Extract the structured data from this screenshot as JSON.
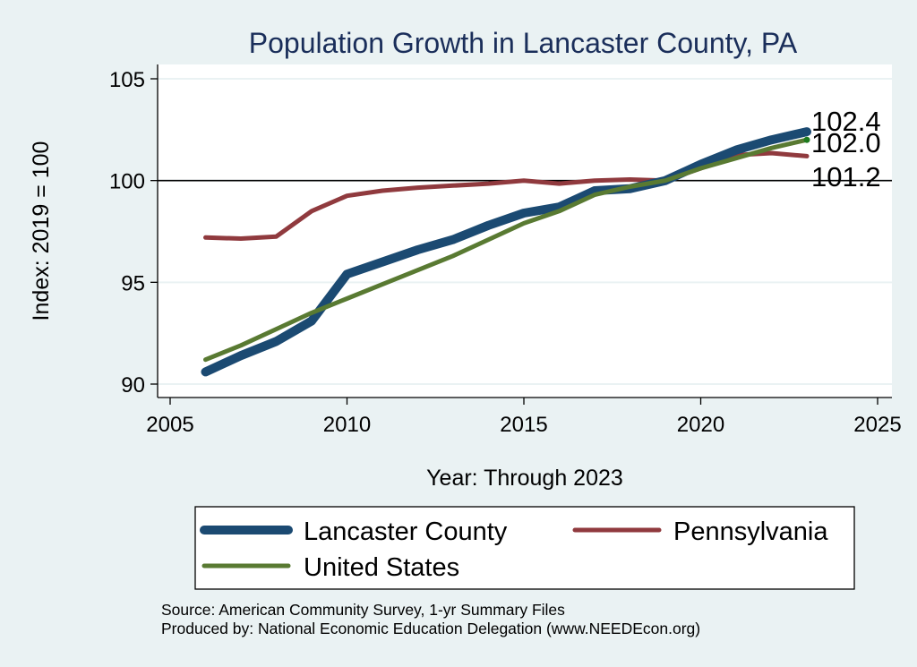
{
  "chart_data": {
    "type": "line",
    "title": "Population Growth in Lancaster County, PA",
    "xlabel": "Year: Through 2023",
    "ylabel": "Index: 2019 = 100",
    "xlim": [
      2005,
      2025
    ],
    "ylim": [
      89.5,
      105.7
    ],
    "x_ticks": [
      2005,
      2010,
      2015,
      2020,
      2025
    ],
    "y_ticks": [
      90,
      95,
      100,
      105
    ],
    "reference_line": 100,
    "grid": true,
    "legend_position": "bottom",
    "x": [
      2006,
      2007,
      2008,
      2009,
      2010,
      2011,
      2012,
      2013,
      2014,
      2015,
      2016,
      2017,
      2018,
      2019,
      2020,
      2021,
      2022,
      2023
    ],
    "series": [
      {
        "name": "Lancaster  County",
        "color": "#1b4a72",
        "width": "thick",
        "values": [
          90.6,
          91.4,
          92.1,
          93.1,
          95.4,
          96.0,
          96.6,
          97.1,
          97.8,
          98.4,
          98.7,
          99.5,
          99.6,
          100.0,
          100.8,
          101.5,
          102.0,
          102.4
        ]
      },
      {
        "name": "Pennsylvania",
        "color": "#903a3e",
        "width": "medium",
        "values": [
          97.2,
          97.15,
          97.25,
          98.5,
          99.25,
          99.5,
          99.65,
          99.75,
          99.85,
          100.0,
          99.85,
          100.0,
          100.05,
          100.0,
          100.6,
          101.25,
          101.35,
          101.2
        ]
      },
      {
        "name": "United States",
        "color": "#597a32",
        "width": "medium",
        "values": [
          91.2,
          91.9,
          92.7,
          93.5,
          94.2,
          94.9,
          95.6,
          96.3,
          97.1,
          97.9,
          98.5,
          99.3,
          99.7,
          100.0,
          100.6,
          101.1,
          101.6,
          102.0
        ]
      }
    ],
    "end_labels": [
      "102.4",
      "102.0",
      "101.2"
    ],
    "source_line": "Source: American Community Survey, 1-yr Summary Files",
    "produced_line": "Produced by: National Economic Education Delegation (www.NEEDEcon.org)"
  }
}
